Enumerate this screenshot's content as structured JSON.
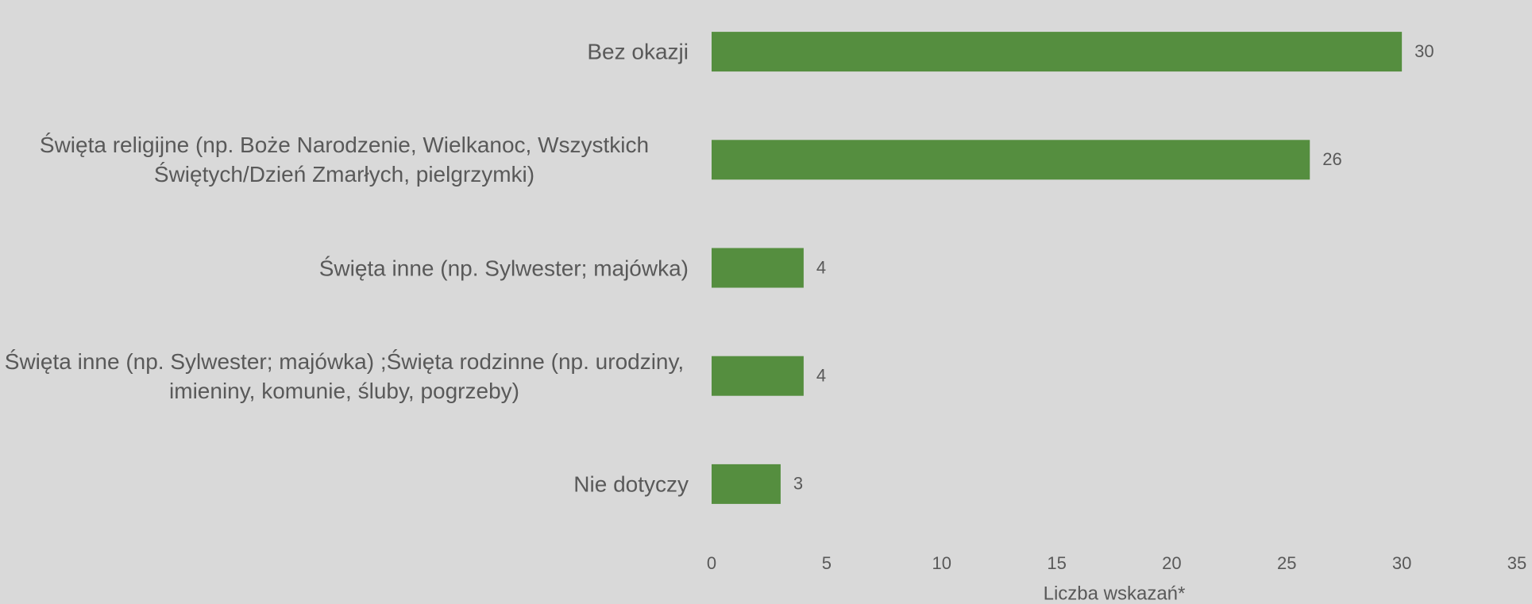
{
  "chart_data": {
    "type": "bar",
    "orientation": "horizontal",
    "categories": [
      "Bez okazji",
      "Święta religijne (np. Boże Narodzenie, Wielkanoc, Wszystkich Świętych/Dzień Zmarłych, pielgrzymki)",
      "Święta inne (np. Sylwester; majówka)",
      "Święta inne (np. Sylwester; majówka) ;Święta rodzinne (np. urodziny, imieniny, komunie, śluby, pogrzeby)",
      "Nie dotyczy"
    ],
    "values": [
      30,
      26,
      4,
      4,
      3
    ],
    "color": "#558e3f",
    "xlabel": "Liczba wskazań*",
    "xlim": [
      0,
      35
    ],
    "xticks": [
      0,
      5,
      10,
      15,
      20,
      25,
      30,
      35
    ],
    "grid": false
  }
}
